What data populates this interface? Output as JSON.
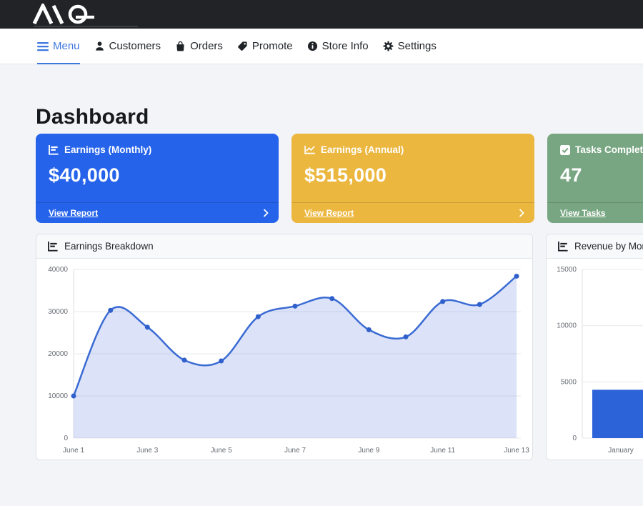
{
  "brand": {
    "logo_text": "AIQ"
  },
  "nav": {
    "items": [
      {
        "label": "Menu",
        "icon": "hamburger-icon",
        "active": true
      },
      {
        "label": "Customers",
        "icon": "person-icon",
        "active": false
      },
      {
        "label": "Orders",
        "icon": "bag-icon",
        "active": false
      },
      {
        "label": "Promote",
        "icon": "tag-icon",
        "active": false
      },
      {
        "label": "Store Info",
        "icon": "info-icon",
        "active": false
      },
      {
        "label": "Settings",
        "icon": "gear-icon",
        "active": false
      }
    ]
  },
  "page": {
    "title": "Dashboard"
  },
  "stat_cards": [
    {
      "title": "Earnings (Monthly)",
      "value": "$40,000",
      "link": "View Report",
      "color": "#2563eb",
      "icon": "bar-chart-icon",
      "has_chevron": true
    },
    {
      "title": "Earnings (Annual)",
      "value": "$515,000",
      "link": "View Report",
      "color": "#ecb73f",
      "icon": "line-chart-icon",
      "has_chevron": true
    },
    {
      "title": "Tasks Completed",
      "value": "47",
      "link": "View Tasks",
      "color": "#78a682",
      "icon": "check-square-icon",
      "has_chevron": false
    }
  ],
  "chart_data": [
    {
      "type": "line",
      "title": "Earnings Breakdown",
      "x": [
        "June 1",
        "June 2",
        "June 3",
        "June 4",
        "June 5",
        "June 6",
        "June 7",
        "June 8",
        "June 9",
        "June 10",
        "June 11",
        "June 12",
        "June 13"
      ],
      "values": [
        10000,
        30300,
        26300,
        18500,
        18300,
        28800,
        31300,
        33100,
        25700,
        24000,
        32400,
        31700,
        38400
      ],
      "ylim": [
        0,
        40000
      ],
      "y_ticks": [
        0,
        10000,
        20000,
        30000,
        40000
      ],
      "x_label_step": 2,
      "grid": true,
      "legend": false,
      "line_color": "#3a6bd3",
      "point_color": "#3060cc",
      "fill_color": "rgba(78,115,223,0.20)"
    },
    {
      "type": "bar",
      "title": "Revenue by Month",
      "categories": [
        "January"
      ],
      "values": [
        4300
      ],
      "ylim": [
        0,
        15000
      ],
      "y_ticks": [
        0,
        5000,
        10000,
        15000
      ],
      "grid": true,
      "legend": false,
      "bar_color": "#2d63d8"
    }
  ]
}
